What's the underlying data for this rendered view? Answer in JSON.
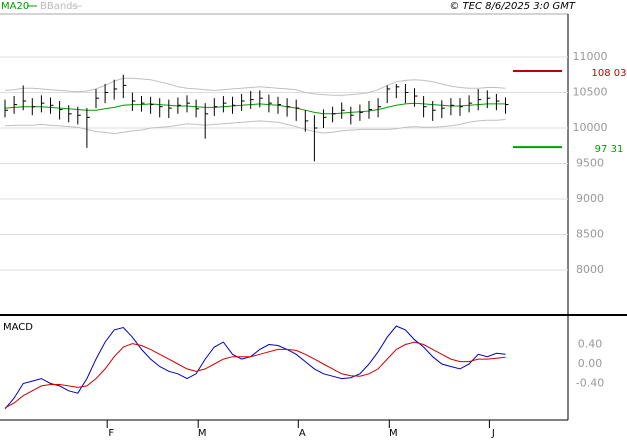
{
  "header": {
    "legend": "MA20",
    "legend2": "BBands",
    "credit": "© TEC 8/6/2025 3:0 GMT"
  },
  "chart_data": [
    {
      "type": "ohlc",
      "ylim": [
        7400,
        11600
      ],
      "yticks": [
        8000,
        8500,
        9000,
        9500,
        10000,
        10500,
        11000
      ],
      "grid": true,
      "bar_color": "#000000",
      "high": [
        10400,
        10450,
        10600,
        10420,
        10460,
        10430,
        10380,
        10320,
        10300,
        10280,
        10550,
        10620,
        10680,
        10750,
        10500,
        10450,
        10440,
        10420,
        10400,
        10430,
        10460,
        10400,
        10350,
        10420,
        10450,
        10440,
        10480,
        10520,
        10530,
        10470,
        10440,
        10420,
        10400,
        10250,
        10180,
        10260,
        10300,
        10360,
        10300,
        10330,
        10380,
        10420,
        10600,
        10620,
        10620,
        10560,
        10450,
        10380,
        10390,
        10420,
        10420,
        10460,
        10550,
        10530,
        10480,
        10430
      ],
      "low": [
        10150,
        10200,
        10250,
        10180,
        10220,
        10200,
        10120,
        10080,
        10050,
        9720,
        10280,
        10350,
        10400,
        10420,
        10240,
        10230,
        10200,
        10150,
        10140,
        10200,
        10220,
        10150,
        9850,
        10170,
        10220,
        10200,
        10240,
        10270,
        10290,
        10220,
        10200,
        10160,
        10100,
        9950,
        9530,
        10000,
        10080,
        10130,
        10050,
        10100,
        10130,
        10150,
        10350,
        10420,
        10350,
        10300,
        10150,
        10100,
        10140,
        10180,
        10170,
        10220,
        10250,
        10280,
        10250,
        10200
      ],
      "close": [
        10250,
        10330,
        10380,
        10300,
        10350,
        10320,
        10260,
        10200,
        10180,
        10150,
        10420,
        10500,
        10550,
        10600,
        10380,
        10350,
        10330,
        10300,
        10280,
        10320,
        10350,
        10270,
        10200,
        10300,
        10350,
        10320,
        10380,
        10400,
        10420,
        10350,
        10330,
        10300,
        10280,
        10100,
        10000,
        10150,
        10200,
        10250,
        10180,
        10220,
        10260,
        10300,
        10550,
        10580,
        10500,
        10450,
        10300,
        10250,
        10280,
        10320,
        10300,
        10350,
        10400,
        10420,
        10380,
        10330
      ],
      "series": [
        {
          "name": "MA20",
          "color": "#00a000",
          "values": [
            10280,
            10290,
            10300,
            10300,
            10300,
            10290,
            10280,
            10270,
            10260,
            10250,
            10250,
            10270,
            10290,
            10320,
            10330,
            10330,
            10340,
            10330,
            10320,
            10310,
            10310,
            10300,
            10290,
            10290,
            10300,
            10310,
            10320,
            10330,
            10340,
            10330,
            10320,
            10300,
            10280,
            10250,
            10220,
            10200,
            10200,
            10210,
            10220,
            10230,
            10240,
            10260,
            10290,
            10320,
            10340,
            10350,
            10340,
            10330,
            10320,
            10310,
            10310,
            10320,
            10330,
            10340,
            10340,
            10340
          ]
        },
        {
          "name": "BBands",
          "color": "#c0c0c0",
          "values": [
            10530,
            10540,
            10560,
            10560,
            10550,
            10540,
            10530,
            10520,
            10510,
            10520,
            10550,
            10600,
            10660,
            10700,
            10700,
            10690,
            10680,
            10650,
            10620,
            10580,
            10560,
            10550,
            10540,
            10530,
            10540,
            10550,
            10560,
            10570,
            10580,
            10570,
            10560,
            10550,
            10540,
            10500,
            10480,
            10470,
            10460,
            10460,
            10470,
            10480,
            10500,
            10540,
            10600,
            10650,
            10670,
            10680,
            10670,
            10650,
            10620,
            10590,
            10570,
            10560,
            10560,
            10570,
            10570,
            10560
          ],
          "lower": [
            10030,
            10040,
            10040,
            10040,
            10050,
            10040,
            10030,
            10020,
            10010,
            9980,
            9950,
            9940,
            9920,
            9940,
            9960,
            9970,
            10000,
            10010,
            10020,
            10040,
            10060,
            10050,
            10040,
            10050,
            10060,
            10070,
            10080,
            10090,
            10100,
            10090,
            10080,
            10050,
            10020,
            9980,
            9950,
            9930,
            9940,
            9960,
            9970,
            9980,
            9980,
            9980,
            9980,
            9990,
            10010,
            10020,
            10010,
            10010,
            10020,
            10030,
            10050,
            10080,
            10100,
            10110,
            10110,
            10120
          ]
        }
      ],
      "levels": [
        {
          "value": 10803,
          "label": "108 03",
          "color": "#c00000"
        },
        {
          "value": 9731,
          "label": "97 31",
          "color": "#00a000"
        }
      ]
    },
    {
      "type": "line",
      "title": "MACD",
      "ylim": [
        -0.95,
        0.85
      ],
      "yticks": [
        {
          "value": -0.4,
          "label": "-0.40"
        },
        {
          "value": 0,
          "label": "0.00"
        },
        {
          "value": 0.4,
          "label": "0.40"
        }
      ],
      "grid": true,
      "categories": [
        null,
        null,
        null,
        null,
        null,
        null,
        null,
        null,
        null,
        null,
        null,
        null,
        "F",
        null,
        null,
        null,
        null,
        null,
        null,
        null,
        null,
        null,
        "M",
        null,
        null,
        null,
        null,
        null,
        null,
        null,
        null,
        null,
        null,
        "A",
        null,
        null,
        null,
        null,
        null,
        null,
        null,
        null,
        null,
        "M",
        null,
        null,
        null,
        null,
        null,
        null,
        null,
        null,
        null,
        null,
        "J",
        null
      ],
      "series": [
        {
          "color": "#0000c0",
          "values": [
            -0.92,
            -0.7,
            -0.4,
            -0.35,
            -0.3,
            -0.4,
            -0.45,
            -0.55,
            -0.6,
            -0.3,
            0.1,
            0.45,
            0.7,
            0.75,
            0.55,
            0.3,
            0.1,
            -0.05,
            -0.15,
            -0.2,
            -0.3,
            -0.2,
            0.1,
            0.35,
            0.45,
            0.2,
            0.1,
            0.15,
            0.3,
            0.4,
            0.38,
            0.3,
            0.2,
            0.05,
            -0.1,
            -0.2,
            -0.25,
            -0.3,
            -0.28,
            -0.2,
            0.0,
            0.25,
            0.55,
            0.78,
            0.7,
            0.5,
            0.35,
            0.15,
            0.0,
            -0.05,
            -0.1,
            0.0,
            0.2,
            0.15,
            0.22,
            0.2
          ]
        },
        {
          "color": "#d00000",
          "values": [
            -0.9,
            -0.8,
            -0.65,
            -0.55,
            -0.45,
            -0.42,
            -0.42,
            -0.45,
            -0.48,
            -0.45,
            -0.3,
            -0.1,
            0.15,
            0.35,
            0.42,
            0.38,
            0.3,
            0.2,
            0.1,
            0.0,
            -0.1,
            -0.15,
            -0.1,
            0.0,
            0.1,
            0.15,
            0.15,
            0.15,
            0.2,
            0.25,
            0.3,
            0.3,
            0.28,
            0.2,
            0.1,
            0.0,
            -0.1,
            -0.2,
            -0.24,
            -0.25,
            -0.2,
            -0.1,
            0.1,
            0.3,
            0.4,
            0.45,
            0.4,
            0.3,
            0.2,
            0.1,
            0.05,
            0.05,
            0.1,
            0.1,
            0.12,
            0.14
          ]
        }
      ]
    }
  ]
}
